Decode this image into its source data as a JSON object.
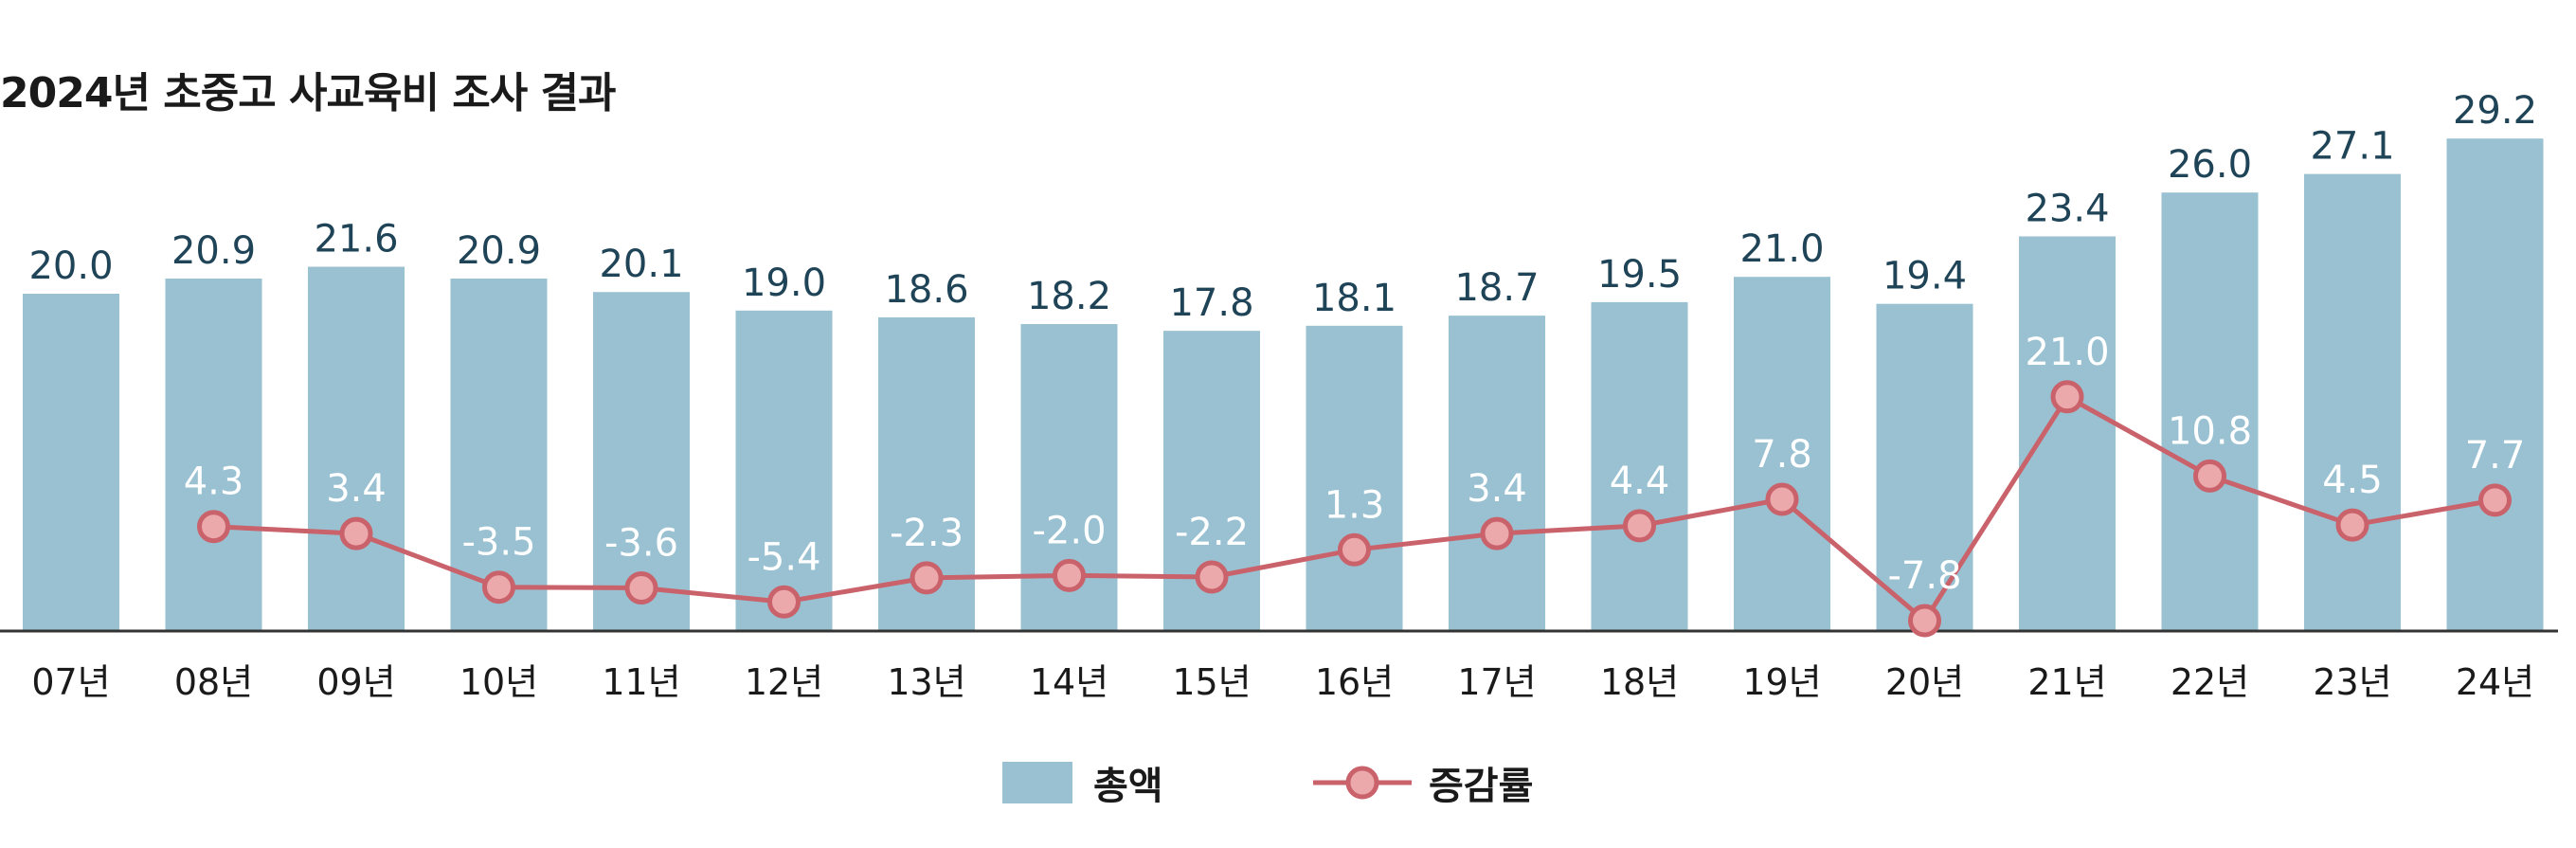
{
  "chart_data": {
    "type": "bar",
    "title": "2024년 초중고 사교육비 조사 결과",
    "categories": [
      "07년",
      "08년",
      "09년",
      "10년",
      "11년",
      "12년",
      "13년",
      "14년",
      "15년",
      "16년",
      "17년",
      "18년",
      "19년",
      "20년",
      "21년",
      "22년",
      "23년",
      "24년"
    ],
    "series": [
      {
        "name": "총액",
        "type": "bar",
        "color": "#99c1d1",
        "values": [
          20.0,
          20.9,
          21.6,
          20.9,
          20.1,
          19.0,
          18.6,
          18.2,
          17.8,
          18.1,
          18.7,
          19.5,
          21.0,
          19.4,
          23.4,
          26.0,
          27.1,
          29.2
        ],
        "labels": [
          "20.0",
          "20.9",
          "21.6",
          "20.9",
          "20.1",
          "19.0",
          "18.6",
          "18.2",
          "17.8",
          "18.1",
          "18.7",
          "19.5",
          "21.0",
          "19.4",
          "23.4",
          "26.0",
          "27.1",
          "29.2"
        ]
      },
      {
        "name": "증감률",
        "type": "line",
        "color": "#c9626a",
        "marker_fill": "#eca9ab",
        "values": [
          null,
          4.3,
          3.4,
          -3.5,
          -3.6,
          -5.4,
          -2.3,
          -2.0,
          -2.2,
          1.3,
          3.4,
          4.4,
          7.8,
          -7.8,
          21.0,
          10.8,
          4.5,
          7.7
        ],
        "labels": [
          "",
          "4.3",
          "3.4",
          "-3.5",
          "-3.6",
          "-5.4",
          "-2.3",
          "-2.0",
          "-2.2",
          "1.3",
          "3.4",
          "4.4",
          "7.8",
          "-7.8",
          "21.0",
          "10.8",
          "4.5",
          "7.7"
        ]
      }
    ],
    "bar_label_color": "#1f4457",
    "line_label_color": "#ffffff",
    "axis_color": "#333333",
    "grid": false,
    "legend_position": "bottom-center"
  }
}
